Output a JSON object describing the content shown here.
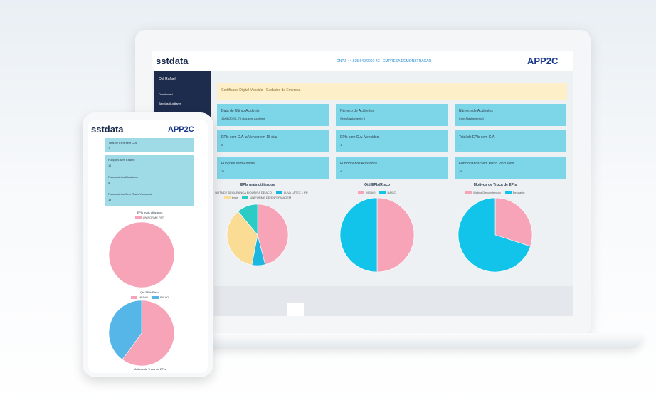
{
  "laptop": {
    "header": {
      "logo": "sstdata",
      "company": "CNPJ: 44.635.640/0001-43 - EMPRESA DEMONSTRAÇÃO",
      "brand": "APP2C"
    },
    "sidebar": {
      "greeting": "Olá Rafael",
      "menu": [
        "Dashboard",
        "Tabelas Auxiliares",
        "Tabelas Personalizadas"
      ]
    },
    "alert": "Certificado Digital Vencido - Cadastro de Empresa",
    "cards": [
      {
        "title": "Data do Último Acidente",
        "value": "16/08/2023 - 75 dias sem Acidente"
      },
      {
        "title": "Número de Acidentes",
        "value": "Sem Afastamento 3"
      },
      {
        "title": "Número de Acidentes",
        "value": "Com Afastamento 1"
      },
      {
        "title": "EPIs com C.A. a Vencer em 15 dias",
        "value": 0
      },
      {
        "title": "EPIs com C.A. Vencidos",
        "value": 1
      },
      {
        "title": "Total de EPIs sem C.A.",
        "value": 7
      },
      {
        "title": "Funções sem Exame",
        "value": 15
      },
      {
        "title": "Funcionários Afastados",
        "value": 4
      },
      {
        "title": "Funcionários Sem Risco Vinculado",
        "value": 18
      }
    ],
    "charts": [
      {
        "type": "pie",
        "title": "EPIs mais utilizados",
        "series": [
          {
            "name": "BOTA DE SEGURANÇA BIQUEIRA DE AÇO",
            "color": "#f7a3b8",
            "value": 46
          },
          {
            "name": "LUVA LÁTEX 1 PR",
            "color": "#1bb7e0",
            "value": 7
          },
          {
            "name": "teste",
            "color": "#fbdc94",
            "value": 36
          },
          {
            "name": "UNIFORME DE ENFERMAGEM",
            "color": "#2ccbc6",
            "value": 11
          }
        ]
      },
      {
        "type": "pie",
        "title": "Qtd.EPIs/Risco",
        "series": [
          {
            "name": "MÉDIO",
            "color": "#f7a3b8",
            "value": 50
          },
          {
            "name": "BAIXO",
            "color": "#12c3ea",
            "value": 50
          }
        ]
      },
      {
        "type": "pie",
        "title": "Motivos de Troca de EPIs",
        "series": [
          {
            "name": "Motivo Desconhecido",
            "color": "#f7a3b8",
            "value": 30
          },
          {
            "name": "Desgaste",
            "color": "#12c3ea",
            "value": 70
          }
        ]
      }
    ]
  },
  "phone": {
    "header": {
      "logo": "sstdata",
      "brand": "APP2C"
    },
    "cards": [
      {
        "title": "Total de EPIs sem C.A.",
        "value": 7
      },
      {
        "title": "Funções sem Exame",
        "value": 15
      },
      {
        "title": "Funcionários Afastados",
        "value": 4
      },
      {
        "title": "Funcionários Sem Risco Vinculado",
        "value": 18
      }
    ],
    "charts": [
      {
        "type": "pie",
        "title": "EPIs mais utilizados",
        "series": [
          {
            "name": "UNIFORME PATI",
            "color": "#f7a3b8",
            "value": 100
          }
        ]
      },
      {
        "type": "pie",
        "title": "Qtd.EPIs/Risco",
        "series": [
          {
            "name": "MÉDIO",
            "color": "#f7a3b8",
            "value": 60
          },
          {
            "name": "BAIXO",
            "color": "#56b6e8",
            "value": 40
          }
        ]
      }
    ],
    "footer": "Motivos de Troca de EPIs"
  }
}
